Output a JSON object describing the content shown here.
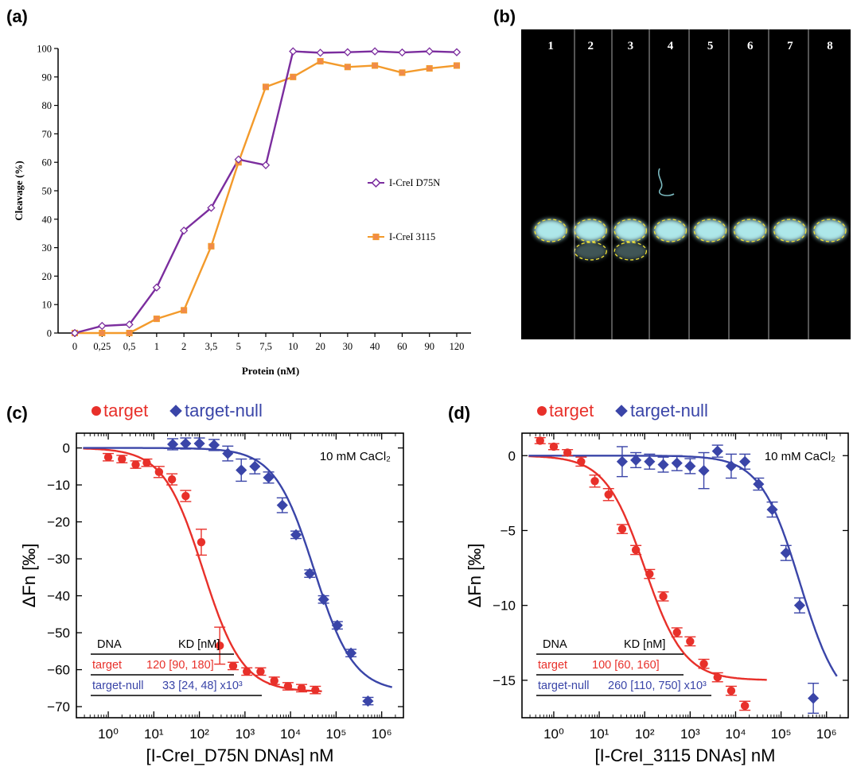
{
  "panel_labels": {
    "a": "(a)",
    "b": "(b)",
    "c": "(c)",
    "d": "(d)"
  },
  "colors": {
    "purple": "#7b2d9e",
    "orange": "#f39a2b",
    "orange_marker": "#f08a4b",
    "red": "#e8302a",
    "blue": "#3a45a8",
    "gel_bg": "#000000",
    "gel_band": "#b8f4f6",
    "gel_outline": "#f2e234"
  },
  "chart_data": [
    {
      "id": "a",
      "type": "line",
      "categories": [
        "0",
        "0,25",
        "0,5",
        "1",
        "2",
        "3,5",
        "5",
        "7,5",
        "10",
        "20",
        "30",
        "40",
        "60",
        "90",
        "120"
      ],
      "series": [
        {
          "name": "I-CreI D75N",
          "values": [
            0,
            2.5,
            3,
            16,
            36,
            44,
            61,
            59,
            99,
            98.5,
            98.7,
            99,
            98.6,
            99,
            98.7
          ]
        },
        {
          "name": "I-CreI 3115",
          "values": [
            0,
            0,
            0,
            5,
            8,
            30.5,
            60,
            86.5,
            90,
            95.5,
            93.5,
            94,
            91.5,
            93,
            94
          ]
        }
      ],
      "title": "",
      "xlabel": "Protein (nM)",
      "ylabel": "Cleavage (%)",
      "ylim": [
        0,
        100
      ],
      "yticks": [
        "0",
        "10",
        "20",
        "30",
        "40",
        "50",
        "60",
        "70",
        "80",
        "90",
        "100"
      ]
    },
    {
      "id": "c",
      "type": "scatter",
      "xscale": "log",
      "xlim": [
        0.2,
        3000000
      ],
      "ylim": [
        -73,
        4
      ],
      "xlabel": "[I-CreI_D75N DNAs] nM",
      "ylabel": "ΔFn [‰]",
      "yticks": [
        "0",
        "-10",
        "-20",
        "-30",
        "-40",
        "-50",
        "-60",
        "-70"
      ],
      "xticks": [
        "10⁰",
        "10¹",
        "10²",
        "10³",
        "10⁴",
        "10⁵",
        "10⁶"
      ],
      "annotation": "10 mM CaCl₂",
      "legend": [
        "target",
        "target-null"
      ],
      "series": [
        {
          "name": "target",
          "kd_nM": 120,
          "bottom": -66,
          "x": [
            1,
            2,
            4,
            7,
            13,
            25,
            50,
            110,
            280,
            550,
            1100,
            2200,
            4400,
            8800,
            17500,
            35000
          ],
          "y": [
            -2.5,
            -3.0,
            -4.5,
            -4.0,
            -6.5,
            -8.5,
            -13,
            -25.5,
            -53.5,
            -59,
            -60.5,
            -60.5,
            -63,
            -64.5,
            -65,
            -65.5
          ],
          "err": [
            1,
            1,
            1,
            1,
            1.5,
            1.5,
            1.5,
            3.5,
            5,
            1,
            1,
            1,
            1,
            1,
            1,
            1
          ]
        },
        {
          "name": "target-null",
          "kd_nM": 33000,
          "bottom": -66,
          "x": [
            26,
            50,
            100,
            210,
            420,
            830,
            1650,
            3300,
            6600,
            13200,
            26400,
            53000,
            106000,
            212000,
            500000
          ],
          "y": [
            1,
            1.2,
            1.2,
            0.8,
            -1.5,
            -6,
            -5,
            -8,
            -15.5,
            -23.5,
            -34,
            -41,
            -48,
            -55.5,
            -68.5
          ],
          "err": [
            1.5,
            1.5,
            1.5,
            1.5,
            2,
            3,
            2,
            1.5,
            2,
            1,
            1,
            1,
            1,
            1,
            1
          ]
        }
      ],
      "table": {
        "header": [
          "DNA",
          "KD [nM]"
        ],
        "rows": [
          {
            "dna": "target",
            "kd": "120 [90, 180]"
          },
          {
            "dna": "target-null",
            "kd": "33 [24, 48] x10³"
          }
        ]
      }
    },
    {
      "id": "d",
      "type": "scatter",
      "xscale": "log",
      "xlim": [
        0.2,
        3000000
      ],
      "ylim": [
        -17.5,
        1.5
      ],
      "xlabel": "[I-CreI_3115 DNAs] nM",
      "ylabel": "ΔFn [‰]",
      "yticks": [
        "0",
        "-5",
        "-10",
        "-15"
      ],
      "xticks": [
        "10⁰",
        "10¹",
        "10²",
        "10³",
        "10⁴",
        "10⁵",
        "10⁶"
      ],
      "annotation": "10 mM CaCl₂",
      "legend": [
        "target",
        "target-null"
      ],
      "series": [
        {
          "name": "target",
          "kd_nM": 100,
          "bottom": -15,
          "x": [
            0.5,
            1,
            2,
            4,
            8,
            16,
            32,
            64,
            128,
            256,
            512,
            1000,
            2000,
            4000,
            8000,
            16000
          ],
          "y": [
            1,
            0.6,
            0.2,
            -0.4,
            -1.7,
            -2.6,
            -4.9,
            -6.3,
            -7.9,
            -9.4,
            -11.8,
            -12.4,
            -13.9,
            -14.8,
            -15.7,
            -16.7
          ],
          "err": [
            0.2,
            0.2,
            0.2,
            0.3,
            0.4,
            0.4,
            0.3,
            0.3,
            0.3,
            0.3,
            0.3,
            0.3,
            0.3,
            0.3,
            0.3,
            0.3
          ]
        },
        {
          "name": "target-null",
          "kd_nM": 260000,
          "bottom": -17,
          "x": [
            32,
            64,
            128,
            256,
            512,
            1000,
            2000,
            4000,
            8000,
            16000,
            32000,
            64000,
            128000,
            256000,
            512000
          ],
          "y": [
            -0.4,
            -0.3,
            -0.4,
            -0.6,
            -0.5,
            -0.7,
            -1.0,
            0.3,
            -0.7,
            -0.4,
            -1.9,
            -3.6,
            -6.5,
            -10,
            -16.2
          ],
          "err": [
            1,
            0.5,
            0.5,
            0.5,
            0.5,
            0.5,
            1.2,
            0.4,
            0.8,
            0.5,
            0.4,
            0.5,
            0.5,
            0.5,
            1
          ]
        }
      ],
      "table": {
        "header": [
          "DNA",
          "KD [nM]"
        ],
        "rows": [
          {
            "dna": "target",
            "kd": "100 [60, 160]"
          },
          {
            "dna": "target-null",
            "kd": "260 [110, 750] x10³"
          }
        ]
      }
    }
  ],
  "gel": {
    "lanes": [
      "1",
      "2",
      "3",
      "4",
      "5",
      "6",
      "7",
      "8"
    ],
    "bands": [
      [
        1
      ],
      [
        1,
        2
      ],
      [
        1,
        2
      ],
      [
        1
      ],
      [
        1
      ],
      [
        1
      ],
      [
        1
      ],
      [
        1
      ]
    ]
  }
}
